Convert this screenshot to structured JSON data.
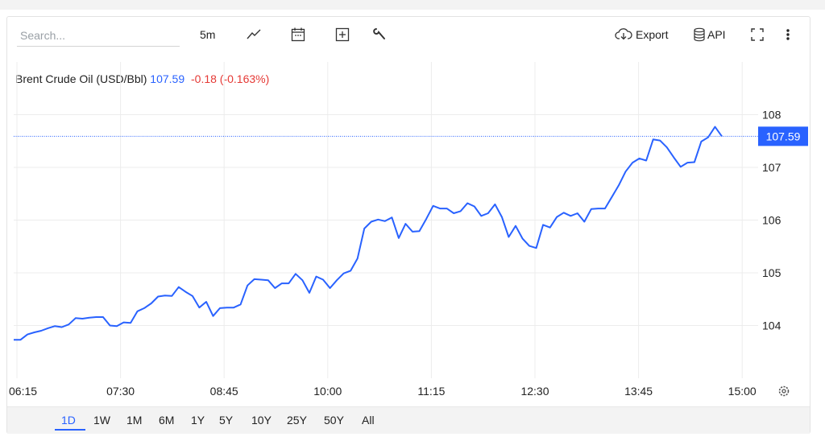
{
  "toolbar": {
    "search_placeholder": "Search...",
    "interval": "5m",
    "export_label": "Export",
    "api_label": "API",
    "icons": [
      "line-chart-icon",
      "calendar-icon",
      "add-indicator-icon",
      "wrench-icon",
      "cloud-download-icon",
      "database-icon",
      "fullscreen-icon",
      "more-vertical-icon"
    ]
  },
  "legend": {
    "name": "Brent Crude Oil (USD/Bbl)",
    "price": "107.59",
    "change": "-0.18 (-0.163%)"
  },
  "colors": {
    "line": "#2962ff",
    "negative": "#e53935",
    "grid": "#ececec",
    "badge": "#2962ff"
  },
  "ranges": [
    "1D",
    "1W",
    "1M",
    "6M",
    "1Y",
    "5Y",
    "10Y",
    "25Y",
    "50Y",
    "All"
  ],
  "active_range": "1D",
  "chart_data": {
    "type": "line",
    "title": "Brent Crude Oil (USD/Bbl)",
    "xlabel": "",
    "ylabel": "",
    "x_ticks": [
      "06:15",
      "07:30",
      "08:45",
      "10:00",
      "11:15",
      "12:30",
      "13:45",
      "15:00"
    ],
    "y_ticks": [
      104,
      105,
      106,
      107,
      108
    ],
    "ylim": [
      103.0,
      109.0
    ],
    "last_price": 107.59,
    "last_price_label": "107.59",
    "grid": true,
    "series": [
      {
        "values": [
          103.73,
          103.73,
          103.83,
          103.87,
          103.9,
          103.95,
          103.99,
          103.97,
          104.02,
          104.14,
          104.13,
          104.15,
          104.16,
          104.16,
          104.0,
          103.99,
          104.06,
          104.05,
          104.27,
          104.33,
          104.42,
          104.55,
          104.57,
          104.56,
          104.73,
          104.64,
          104.56,
          104.34,
          104.45,
          104.18,
          104.33,
          104.34,
          104.34,
          104.4,
          104.76,
          104.88,
          104.87,
          104.86,
          104.71,
          104.8,
          104.8,
          104.98,
          104.86,
          104.62,
          104.93,
          104.87,
          104.71,
          104.86,
          104.99,
          105.04,
          105.27,
          105.84,
          105.97,
          106.01,
          105.98,
          106.05,
          105.66,
          105.93,
          105.78,
          105.79,
          106.02,
          106.27,
          106.22,
          106.22,
          106.13,
          106.17,
          106.32,
          106.26,
          106.08,
          106.13,
          106.3,
          106.06,
          105.68,
          105.89,
          105.65,
          105.51,
          105.47,
          105.91,
          105.86,
          106.06,
          106.14,
          106.08,
          106.13,
          105.97,
          106.21,
          106.22,
          106.22,
          106.44,
          106.66,
          106.92,
          107.09,
          107.17,
          107.13,
          107.53,
          107.51,
          107.38,
          107.19,
          107.01,
          107.09,
          107.1,
          107.49,
          107.57,
          107.77,
          107.59
        ]
      }
    ]
  }
}
